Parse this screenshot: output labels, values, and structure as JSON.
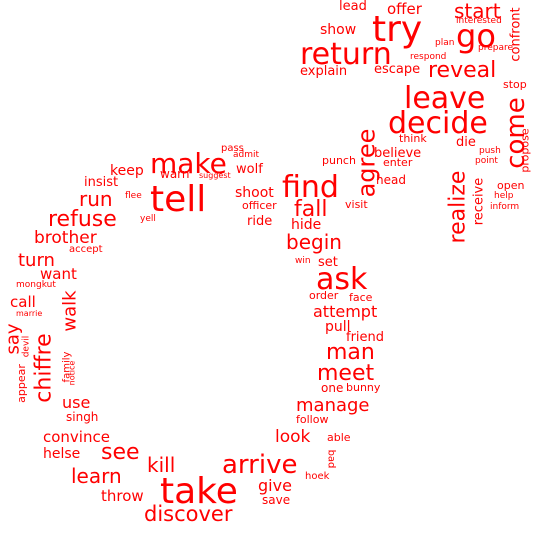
{
  "text_color": "#ff0000",
  "background_color": "#ffffff",
  "words": [
    {
      "text": "tell",
      "weight": 1.0
    },
    {
      "text": "take",
      "weight": 1.0
    },
    {
      "text": "try",
      "weight": 1.0
    },
    {
      "text": "return",
      "weight": 0.9
    },
    {
      "text": "go",
      "weight": 0.9
    },
    {
      "text": "leave",
      "weight": 0.85
    },
    {
      "text": "decide",
      "weight": 0.85
    },
    {
      "text": "find",
      "weight": 0.85
    },
    {
      "text": "ask",
      "weight": 0.85
    },
    {
      "text": "make",
      "weight": 0.8
    },
    {
      "text": "arrive",
      "weight": 0.75
    },
    {
      "text": "come",
      "weight": 0.75
    },
    {
      "text": "agree",
      "weight": 0.7
    },
    {
      "text": "realize",
      "weight": 0.65
    },
    {
      "text": "reveal",
      "weight": 0.65
    },
    {
      "text": "start",
      "weight": 0.6
    },
    {
      "text": "man",
      "weight": 0.6
    },
    {
      "text": "meet",
      "weight": 0.6
    },
    {
      "text": "chiffre",
      "weight": 0.6
    },
    {
      "text": "fall",
      "weight": 0.6
    },
    {
      "text": "begin",
      "weight": 0.55
    },
    {
      "text": "refuse",
      "weight": 0.55
    },
    {
      "text": "discover",
      "weight": 0.55
    },
    {
      "text": "see",
      "weight": 0.55
    },
    {
      "text": "learn",
      "weight": 0.5
    },
    {
      "text": "run",
      "weight": 0.5
    },
    {
      "text": "kill",
      "weight": 0.5
    },
    {
      "text": "walk",
      "weight": 0.45
    },
    {
      "text": "manage",
      "weight": 0.45
    },
    {
      "text": "say",
      "weight": 0.45
    },
    {
      "text": "turn",
      "weight": 0.45
    },
    {
      "text": "brother",
      "weight": 0.4
    },
    {
      "text": "look",
      "weight": 0.4
    },
    {
      "text": "use",
      "weight": 0.4
    },
    {
      "text": "convince",
      "weight": 0.35
    },
    {
      "text": "attempt",
      "weight": 0.35
    },
    {
      "text": "give",
      "weight": 0.35
    },
    {
      "text": "throw",
      "weight": 0.35
    },
    {
      "text": "offer",
      "weight": 0.35
    },
    {
      "text": "escape",
      "weight": 0.3
    },
    {
      "text": "explain",
      "weight": 0.3
    },
    {
      "text": "show",
      "weight": 0.3
    },
    {
      "text": "lead",
      "weight": 0.3
    },
    {
      "text": "keep",
      "weight": 0.3
    },
    {
      "text": "want",
      "weight": 0.3
    },
    {
      "text": "call",
      "weight": 0.3
    },
    {
      "text": "helse",
      "weight": 0.3
    },
    {
      "text": "pull",
      "weight": 0.3
    },
    {
      "text": "believe",
      "weight": 0.3
    },
    {
      "text": "shoot",
      "weight": 0.3
    },
    {
      "text": "hide",
      "weight": 0.3
    },
    {
      "text": "insist",
      "weight": 0.25
    },
    {
      "text": "receive",
      "weight": 0.25
    },
    {
      "text": "ride",
      "weight": 0.25
    },
    {
      "text": "wolf",
      "weight": 0.25
    },
    {
      "text": "warn",
      "weight": 0.25
    },
    {
      "text": "set",
      "weight": 0.25
    },
    {
      "text": "friend",
      "weight": 0.25
    },
    {
      "text": "confront",
      "weight": 0.25
    },
    {
      "text": "singh",
      "weight": 0.25
    },
    {
      "text": "save",
      "weight": 0.25
    },
    {
      "text": "die",
      "weight": 0.25
    },
    {
      "text": "open",
      "weight": 0.2
    },
    {
      "text": "stop",
      "weight": 0.2
    },
    {
      "text": "propose",
      "weight": 0.2
    },
    {
      "text": "head",
      "weight": 0.2
    },
    {
      "text": "punch",
      "weight": 0.2
    },
    {
      "text": "enter",
      "weight": 0.2
    },
    {
      "text": "think",
      "weight": 0.2
    },
    {
      "text": "officer",
      "weight": 0.2
    },
    {
      "text": "visit",
      "weight": 0.2
    },
    {
      "text": "order",
      "weight": 0.2
    },
    {
      "text": "face",
      "weight": 0.2
    },
    {
      "text": "one",
      "weight": 0.2
    },
    {
      "text": "bunny",
      "weight": 0.2
    },
    {
      "text": "follow",
      "weight": 0.2
    },
    {
      "text": "able",
      "weight": 0.2
    },
    {
      "text": "bad",
      "weight": 0.2
    },
    {
      "text": "hoek",
      "weight": 0.2
    },
    {
      "text": "appear",
      "weight": 0.2
    },
    {
      "text": "family",
      "weight": 0.2
    },
    {
      "text": "accept",
      "weight": 0.2
    },
    {
      "text": "pass",
      "weight": 0.2
    },
    {
      "text": "win",
      "weight": 0.15
    },
    {
      "text": "yell",
      "weight": 0.15
    },
    {
      "text": "flee",
      "weight": 0.15
    },
    {
      "text": "admit",
      "weight": 0.15
    },
    {
      "text": "suggest",
      "weight": 0.15
    },
    {
      "text": "plan",
      "weight": 0.15
    },
    {
      "text": "respond",
      "weight": 0.15
    },
    {
      "text": "interested",
      "weight": 0.15
    },
    {
      "text": "prepare",
      "weight": 0.15
    },
    {
      "text": "push",
      "weight": 0.15
    },
    {
      "text": "point",
      "weight": 0.15
    },
    {
      "text": "help",
      "weight": 0.15
    },
    {
      "text": "inform",
      "weight": 0.15
    },
    {
      "text": "mongkut",
      "weight": 0.15
    },
    {
      "text": "marrie",
      "weight": 0.15
    },
    {
      "text": "devil",
      "weight": 0.15
    },
    {
      "text": "notice",
      "weight": 0.15
    }
  ]
}
